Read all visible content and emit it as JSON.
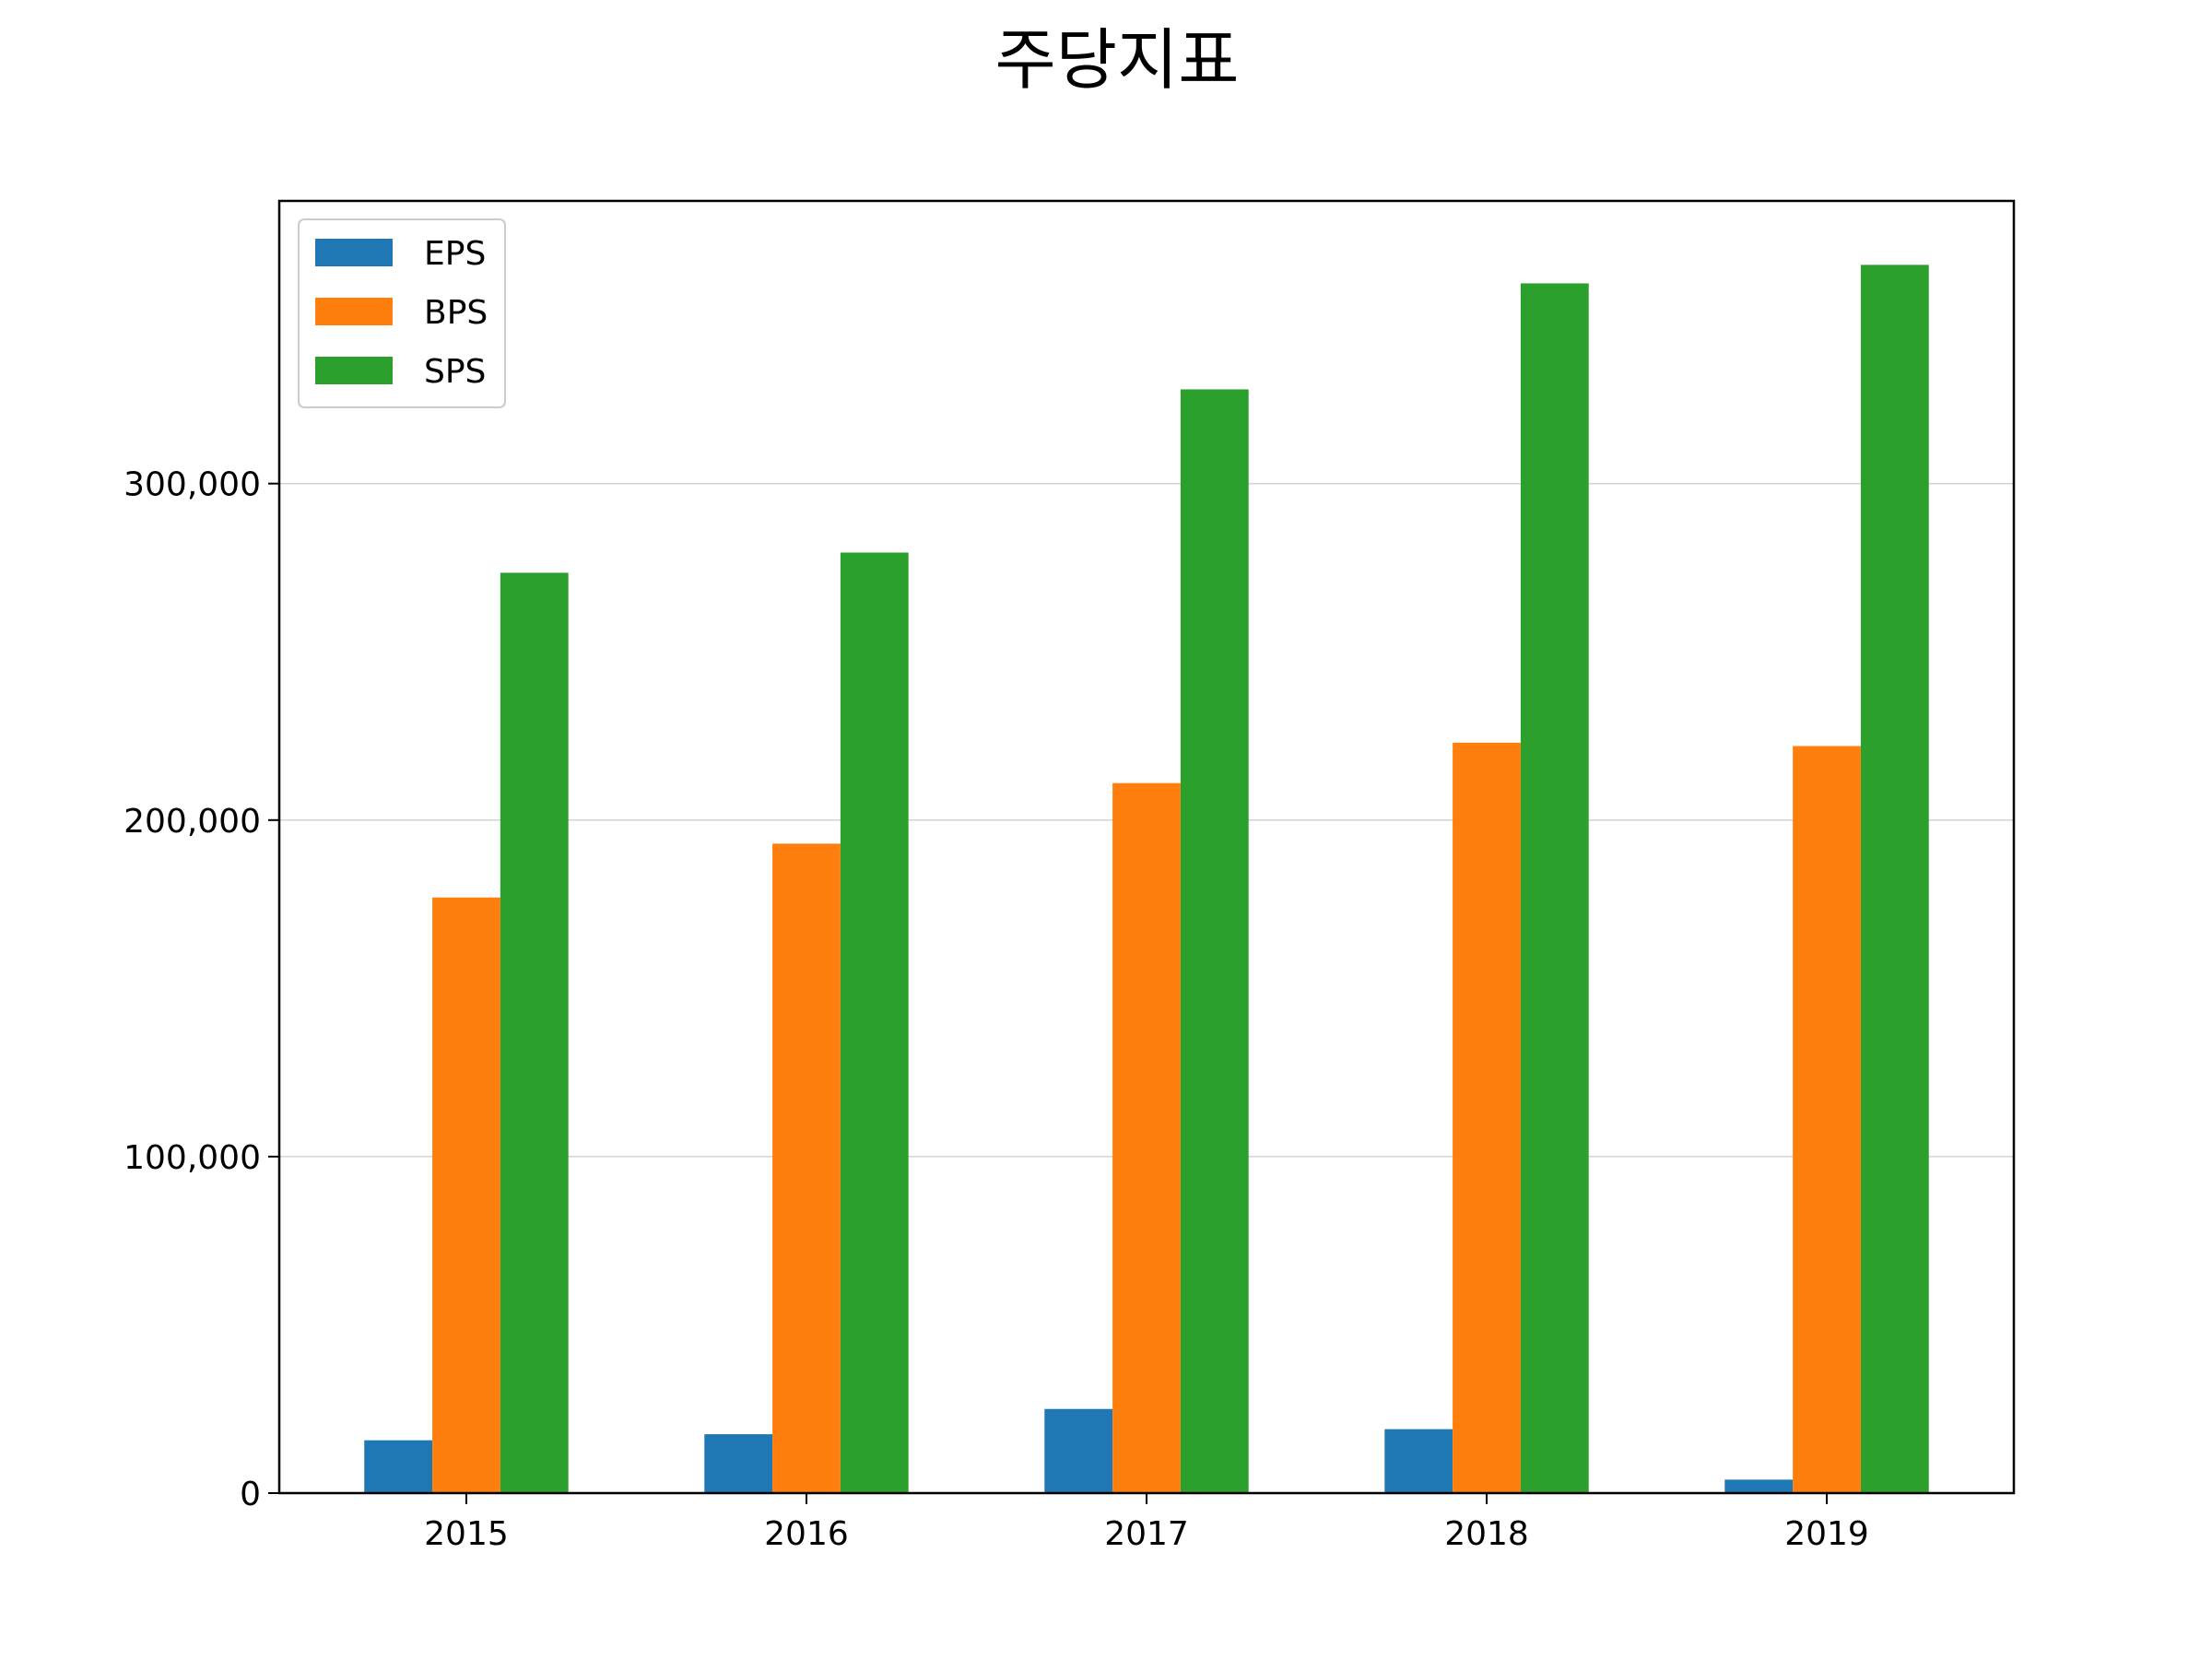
{
  "chart_data": {
    "type": "bar",
    "title": "주당지표",
    "xlabel": "",
    "ylabel": "",
    "categories": [
      "2015",
      "2016",
      "2017",
      "2018",
      "2019"
    ],
    "series": [
      {
        "name": "EPS",
        "color": "#1f77b4",
        "values": [
          15700,
          17500,
          25000,
          19000,
          4000
        ]
      },
      {
        "name": "BPS",
        "color": "#ff7f0e",
        "values": [
          177000,
          193000,
          211000,
          223000,
          222000
        ]
      },
      {
        "name": "SPS",
        "color": "#2ca02c",
        "values": [
          273500,
          279500,
          328000,
          359500,
          365000
        ]
      }
    ],
    "ylim": [
      0,
      384000
    ],
    "yticks": [
      0,
      100000,
      200000,
      300000
    ],
    "ytick_labels": [
      "0",
      "100,000",
      "200,000",
      "300,000"
    ],
    "grid": "y",
    "legend_position": "upper-left"
  }
}
